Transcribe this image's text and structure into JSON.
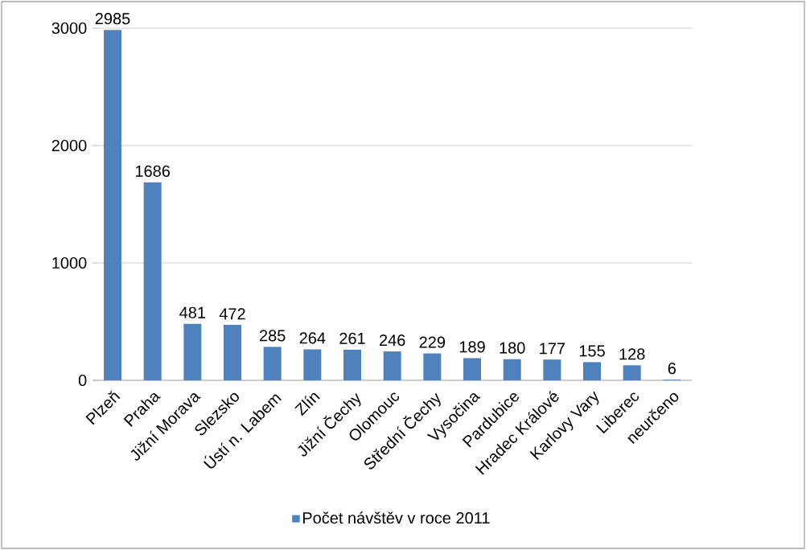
{
  "chart_data": {
    "type": "bar",
    "categories": [
      "Plzeň",
      "Praha",
      "Jižní Morava",
      "Slezsko",
      "Ústí n. Labem",
      "Zlín",
      "Jižní Čechy",
      "Olomouc",
      "Střední Čechy",
      "Vysočina",
      "Pardubice",
      "Hradec Králové",
      "Karlovy Vary",
      "Liberec",
      "neurčeno"
    ],
    "series": [
      {
        "name": "Počet návštěv v roce 2011",
        "color": "#4f81bd",
        "values": [
          2985,
          1686,
          481,
          472,
          285,
          264,
          261,
          246,
          229,
          189,
          180,
          177,
          155,
          128,
          6
        ]
      }
    ],
    "ylim": [
      0,
      3000
    ],
    "yticks": [
      0,
      1000,
      2000,
      3000
    ],
    "grid": "y",
    "legend": "bottom",
    "data_labels": true
  }
}
